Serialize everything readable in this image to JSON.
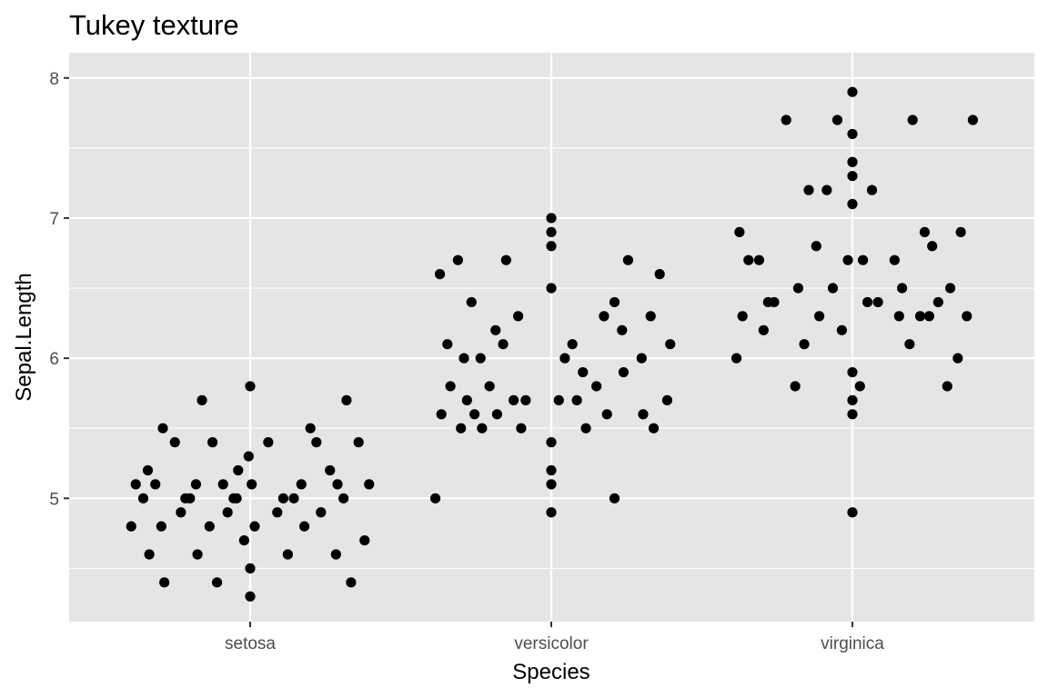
{
  "chart_data": {
    "type": "scatter",
    "title": "Tukey texture",
    "xlabel": "Species",
    "ylabel": "Sepal.Length",
    "categories": [
      "setosa",
      "versicolor",
      "virginica"
    ],
    "ylim": [
      4.12,
      8.18
    ],
    "y_ticks": [
      5,
      6,
      7,
      8
    ],
    "y_tick_labels": [
      "5",
      "6",
      "7",
      "8"
    ],
    "grid": true,
    "background": "#e5e5e5",
    "grid_color": "#ffffff",
    "point_color": "#000000",
    "points": [
      {
        "category": "setosa",
        "offset": -0.395,
        "y": 4.8
      },
      {
        "category": "setosa",
        "offset": -0.38,
        "y": 5.1
      },
      {
        "category": "setosa",
        "offset": -0.355,
        "y": 5.0
      },
      {
        "category": "setosa",
        "offset": -0.34,
        "y": 5.2
      },
      {
        "category": "setosa",
        "offset": -0.335,
        "y": 4.6
      },
      {
        "category": "setosa",
        "offset": -0.315,
        "y": 5.1
      },
      {
        "category": "setosa",
        "offset": -0.295,
        "y": 4.8
      },
      {
        "category": "setosa",
        "offset": -0.29,
        "y": 5.5
      },
      {
        "category": "setosa",
        "offset": -0.285,
        "y": 4.4
      },
      {
        "category": "setosa",
        "offset": -0.25,
        "y": 5.4
      },
      {
        "category": "setosa",
        "offset": -0.23,
        "y": 4.9
      },
      {
        "category": "setosa",
        "offset": -0.215,
        "y": 5.0
      },
      {
        "category": "setosa",
        "offset": -0.2,
        "y": 5.0
      },
      {
        "category": "setosa",
        "offset": -0.18,
        "y": 5.1
      },
      {
        "category": "setosa",
        "offset": -0.175,
        "y": 4.6
      },
      {
        "category": "setosa",
        "offset": -0.16,
        "y": 5.7
      },
      {
        "category": "setosa",
        "offset": -0.135,
        "y": 4.8
      },
      {
        "category": "setosa",
        "offset": -0.125,
        "y": 5.4
      },
      {
        "category": "setosa",
        "offset": -0.11,
        "y": 4.4
      },
      {
        "category": "setosa",
        "offset": -0.09,
        "y": 5.1
      },
      {
        "category": "setosa",
        "offset": -0.075,
        "y": 4.9
      },
      {
        "category": "setosa",
        "offset": -0.055,
        "y": 5.0
      },
      {
        "category": "setosa",
        "offset": -0.045,
        "y": 5.0
      },
      {
        "category": "setosa",
        "offset": -0.04,
        "y": 5.2
      },
      {
        "category": "setosa",
        "offset": -0.02,
        "y": 4.7
      },
      {
        "category": "setosa",
        "offset": -0.005,
        "y": 5.3
      },
      {
        "category": "setosa",
        "offset": 0.0,
        "y": 5.8
      },
      {
        "category": "setosa",
        "offset": 0.0,
        "y": 4.5
      },
      {
        "category": "setosa",
        "offset": 0.0,
        "y": 4.3
      },
      {
        "category": "setosa",
        "offset": 0.005,
        "y": 5.1
      },
      {
        "category": "setosa",
        "offset": 0.015,
        "y": 4.8
      },
      {
        "category": "setosa",
        "offset": 0.06,
        "y": 5.4
      },
      {
        "category": "setosa",
        "offset": 0.09,
        "y": 4.9
      },
      {
        "category": "setosa",
        "offset": 0.11,
        "y": 5.0
      },
      {
        "category": "setosa",
        "offset": 0.125,
        "y": 4.6
      },
      {
        "category": "setosa",
        "offset": 0.145,
        "y": 5.0
      },
      {
        "category": "setosa",
        "offset": 0.17,
        "y": 5.1
      },
      {
        "category": "setosa",
        "offset": 0.18,
        "y": 4.8
      },
      {
        "category": "setosa",
        "offset": 0.2,
        "y": 5.5
      },
      {
        "category": "setosa",
        "offset": 0.22,
        "y": 5.4
      },
      {
        "category": "setosa",
        "offset": 0.235,
        "y": 4.9
      },
      {
        "category": "setosa",
        "offset": 0.265,
        "y": 5.2
      },
      {
        "category": "setosa",
        "offset": 0.285,
        "y": 4.6
      },
      {
        "category": "setosa",
        "offset": 0.29,
        "y": 5.1
      },
      {
        "category": "setosa",
        "offset": 0.31,
        "y": 5.0
      },
      {
        "category": "setosa",
        "offset": 0.32,
        "y": 5.7
      },
      {
        "category": "setosa",
        "offset": 0.335,
        "y": 4.4
      },
      {
        "category": "setosa",
        "offset": 0.36,
        "y": 5.4
      },
      {
        "category": "setosa",
        "offset": 0.38,
        "y": 4.7
      },
      {
        "category": "setosa",
        "offset": 0.395,
        "y": 5.1
      },
      {
        "category": "versicolor",
        "offset": -0.385,
        "y": 5.0
      },
      {
        "category": "versicolor",
        "offset": -0.37,
        "y": 6.6
      },
      {
        "category": "versicolor",
        "offset": -0.365,
        "y": 5.6
      },
      {
        "category": "versicolor",
        "offset": -0.345,
        "y": 6.1
      },
      {
        "category": "versicolor",
        "offset": -0.335,
        "y": 5.8
      },
      {
        "category": "versicolor",
        "offset": -0.31,
        "y": 6.7
      },
      {
        "category": "versicolor",
        "offset": -0.3,
        "y": 5.5
      },
      {
        "category": "versicolor",
        "offset": -0.29,
        "y": 6.0
      },
      {
        "category": "versicolor",
        "offset": -0.28,
        "y": 5.7
      },
      {
        "category": "versicolor",
        "offset": -0.265,
        "y": 6.4
      },
      {
        "category": "versicolor",
        "offset": -0.255,
        "y": 5.6
      },
      {
        "category": "versicolor",
        "offset": -0.235,
        "y": 6.0
      },
      {
        "category": "versicolor",
        "offset": -0.23,
        "y": 5.5
      },
      {
        "category": "versicolor",
        "offset": -0.205,
        "y": 5.8
      },
      {
        "category": "versicolor",
        "offset": -0.185,
        "y": 6.2
      },
      {
        "category": "versicolor",
        "offset": -0.18,
        "y": 5.6
      },
      {
        "category": "versicolor",
        "offset": -0.16,
        "y": 6.1
      },
      {
        "category": "versicolor",
        "offset": -0.15,
        "y": 6.7
      },
      {
        "category": "versicolor",
        "offset": -0.125,
        "y": 5.7
      },
      {
        "category": "versicolor",
        "offset": -0.11,
        "y": 6.3
      },
      {
        "category": "versicolor",
        "offset": -0.1,
        "y": 5.5
      },
      {
        "category": "versicolor",
        "offset": -0.085,
        "y": 5.7
      },
      {
        "category": "versicolor",
        "offset": 0.0,
        "y": 7.0
      },
      {
        "category": "versicolor",
        "offset": 0.0,
        "y": 6.9
      },
      {
        "category": "versicolor",
        "offset": 0.0,
        "y": 6.8
      },
      {
        "category": "versicolor",
        "offset": 0.0,
        "y": 6.5
      },
      {
        "category": "versicolor",
        "offset": 0.0,
        "y": 5.4
      },
      {
        "category": "versicolor",
        "offset": 0.0,
        "y": 5.2
      },
      {
        "category": "versicolor",
        "offset": 0.0,
        "y": 5.1
      },
      {
        "category": "versicolor",
        "offset": 0.0,
        "y": 4.9
      },
      {
        "category": "versicolor",
        "offset": 0.025,
        "y": 5.7
      },
      {
        "category": "versicolor",
        "offset": 0.045,
        "y": 6.0
      },
      {
        "category": "versicolor",
        "offset": 0.07,
        "y": 6.1
      },
      {
        "category": "versicolor",
        "offset": 0.085,
        "y": 5.7
      },
      {
        "category": "versicolor",
        "offset": 0.105,
        "y": 5.9
      },
      {
        "category": "versicolor",
        "offset": 0.115,
        "y": 5.5
      },
      {
        "category": "versicolor",
        "offset": 0.15,
        "y": 5.8
      },
      {
        "category": "versicolor",
        "offset": 0.175,
        "y": 6.3
      },
      {
        "category": "versicolor",
        "offset": 0.185,
        "y": 5.6
      },
      {
        "category": "versicolor",
        "offset": 0.21,
        "y": 6.4
      },
      {
        "category": "versicolor",
        "offset": 0.21,
        "y": 5.0
      },
      {
        "category": "versicolor",
        "offset": 0.235,
        "y": 6.2
      },
      {
        "category": "versicolor",
        "offset": 0.24,
        "y": 5.9
      },
      {
        "category": "versicolor",
        "offset": 0.255,
        "y": 6.7
      },
      {
        "category": "versicolor",
        "offset": 0.3,
        "y": 6.0
      },
      {
        "category": "versicolor",
        "offset": 0.305,
        "y": 5.6
      },
      {
        "category": "versicolor",
        "offset": 0.33,
        "y": 6.3
      },
      {
        "category": "versicolor",
        "offset": 0.34,
        "y": 5.5
      },
      {
        "category": "versicolor",
        "offset": 0.36,
        "y": 6.6
      },
      {
        "category": "versicolor",
        "offset": 0.385,
        "y": 5.7
      },
      {
        "category": "versicolor",
        "offset": 0.395,
        "y": 6.1
      },
      {
        "category": "virginica",
        "offset": -0.385,
        "y": 6.0
      },
      {
        "category": "virginica",
        "offset": -0.375,
        "y": 6.9
      },
      {
        "category": "virginica",
        "offset": -0.365,
        "y": 6.3
      },
      {
        "category": "virginica",
        "offset": -0.345,
        "y": 6.7
      },
      {
        "category": "virginica",
        "offset": -0.31,
        "y": 6.7
      },
      {
        "category": "virginica",
        "offset": -0.295,
        "y": 6.2
      },
      {
        "category": "virginica",
        "offset": -0.28,
        "y": 6.4
      },
      {
        "category": "virginica",
        "offset": -0.26,
        "y": 6.4
      },
      {
        "category": "virginica",
        "offset": -0.22,
        "y": 7.7
      },
      {
        "category": "virginica",
        "offset": -0.19,
        "y": 5.8
      },
      {
        "category": "virginica",
        "offset": -0.18,
        "y": 6.5
      },
      {
        "category": "virginica",
        "offset": -0.16,
        "y": 6.1
      },
      {
        "category": "virginica",
        "offset": -0.145,
        "y": 7.2
      },
      {
        "category": "virginica",
        "offset": -0.12,
        "y": 6.8
      },
      {
        "category": "virginica",
        "offset": -0.11,
        "y": 6.3
      },
      {
        "category": "virginica",
        "offset": -0.085,
        "y": 7.2
      },
      {
        "category": "virginica",
        "offset": -0.065,
        "y": 6.5
      },
      {
        "category": "virginica",
        "offset": -0.05,
        "y": 7.7
      },
      {
        "category": "virginica",
        "offset": -0.035,
        "y": 6.2
      },
      {
        "category": "virginica",
        "offset": -0.015,
        "y": 6.7
      },
      {
        "category": "virginica",
        "offset": 0.0,
        "y": 7.9
      },
      {
        "category": "virginica",
        "offset": 0.0,
        "y": 7.6
      },
      {
        "category": "virginica",
        "offset": 0.0,
        "y": 7.4
      },
      {
        "category": "virginica",
        "offset": 0.0,
        "y": 7.3
      },
      {
        "category": "virginica",
        "offset": 0.0,
        "y": 7.1
      },
      {
        "category": "virginica",
        "offset": 0.0,
        "y": 5.9
      },
      {
        "category": "virginica",
        "offset": 0.0,
        "y": 5.7
      },
      {
        "category": "virginica",
        "offset": 0.0,
        "y": 5.6
      },
      {
        "category": "virginica",
        "offset": 0.0,
        "y": 4.9
      },
      {
        "category": "virginica",
        "offset": 0.025,
        "y": 5.8
      },
      {
        "category": "virginica",
        "offset": 0.035,
        "y": 6.7
      },
      {
        "category": "virginica",
        "offset": 0.05,
        "y": 6.4
      },
      {
        "category": "virginica",
        "offset": 0.065,
        "y": 7.2
      },
      {
        "category": "virginica",
        "offset": 0.085,
        "y": 6.4
      },
      {
        "category": "virginica",
        "offset": 0.14,
        "y": 6.7
      },
      {
        "category": "virginica",
        "offset": 0.155,
        "y": 6.3
      },
      {
        "category": "virginica",
        "offset": 0.165,
        "y": 6.5
      },
      {
        "category": "virginica",
        "offset": 0.19,
        "y": 6.1
      },
      {
        "category": "virginica",
        "offset": 0.2,
        "y": 7.7
      },
      {
        "category": "virginica",
        "offset": 0.225,
        "y": 6.3
      },
      {
        "category": "virginica",
        "offset": 0.24,
        "y": 6.9
      },
      {
        "category": "virginica",
        "offset": 0.255,
        "y": 6.3
      },
      {
        "category": "virginica",
        "offset": 0.265,
        "y": 6.8
      },
      {
        "category": "virginica",
        "offset": 0.285,
        "y": 6.4
      },
      {
        "category": "virginica",
        "offset": 0.315,
        "y": 5.8
      },
      {
        "category": "virginica",
        "offset": 0.325,
        "y": 6.5
      },
      {
        "category": "virginica",
        "offset": 0.35,
        "y": 6.0
      },
      {
        "category": "virginica",
        "offset": 0.36,
        "y": 6.9
      },
      {
        "category": "virginica",
        "offset": 0.38,
        "y": 6.3
      },
      {
        "category": "virginica",
        "offset": 0.4,
        "y": 7.7
      }
    ]
  }
}
